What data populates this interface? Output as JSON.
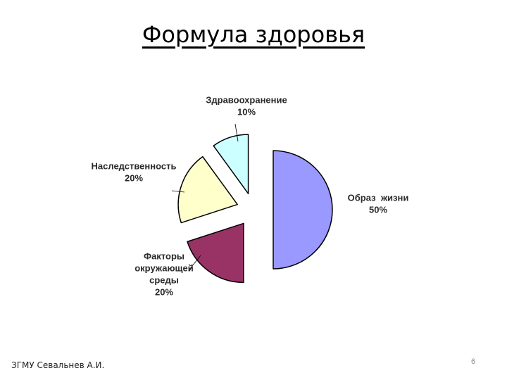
{
  "slide": {
    "title": "Формула здоровья",
    "footer": "ЗГМУ Севальнев А.И.",
    "page_number": "6"
  },
  "chart_data": {
    "type": "pie",
    "title": "",
    "exploded": true,
    "start_angle_deg": 0,
    "direction": "clockwise",
    "slices": [
      {
        "label": [
          "Образ  жизни",
          "50%"
        ],
        "value": 50,
        "color": "#9999ff"
      },
      {
        "label": [
          "Факторы",
          "окружающей",
          "среды",
          "20%"
        ],
        "value": 20,
        "color": "#993366"
      },
      {
        "label": [
          "Наследственность",
          "20%"
        ],
        "value": 20,
        "color": "#ffffcc"
      },
      {
        "label": [
          "Здравоохранение",
          "10%"
        ],
        "value": 10,
        "color": "#ccffff"
      }
    ]
  }
}
